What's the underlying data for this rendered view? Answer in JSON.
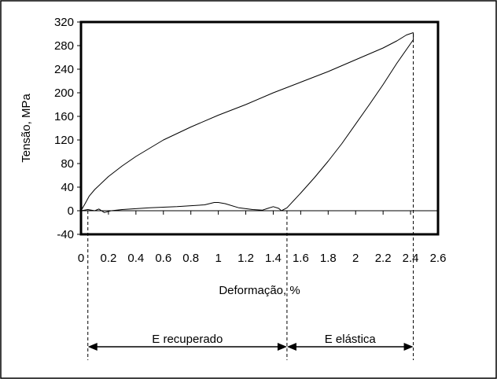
{
  "chart_data": {
    "type": "line",
    "title": "",
    "xlabel": "Deformação, %",
    "ylabel": "Tensão, MPa",
    "xlim": [
      0,
      2.6
    ],
    "ylim": [
      -40,
      320
    ],
    "x_ticks": [
      "0",
      "0.2",
      "0.4",
      "0.6",
      "0.8",
      "1",
      "1.2",
      "1.4",
      "1.6",
      "1.8",
      "2",
      "2.2",
      "2.4",
      "2.6"
    ],
    "y_ticks": [
      "-40",
      "0",
      "40",
      "80",
      "120",
      "160",
      "200",
      "240",
      "280",
      "320"
    ],
    "grid": false,
    "legend": "none",
    "series": [
      {
        "points": [
          [
            0.0,
            0
          ],
          [
            0.03,
            12
          ],
          [
            0.06,
            25
          ],
          [
            0.1,
            36
          ],
          [
            0.2,
            58
          ],
          [
            0.3,
            76
          ],
          [
            0.4,
            92
          ],
          [
            0.5,
            106
          ],
          [
            0.6,
            120
          ],
          [
            0.8,
            142
          ],
          [
            1.0,
            162
          ],
          [
            1.2,
            180
          ],
          [
            1.4,
            200
          ],
          [
            1.6,
            218
          ],
          [
            1.8,
            236
          ],
          [
            2.0,
            256
          ],
          [
            2.2,
            276
          ],
          [
            2.3,
            288
          ],
          [
            2.37,
            298
          ],
          [
            2.42,
            302
          ]
        ]
      },
      {
        "points": [
          [
            2.42,
            302
          ],
          [
            2.42,
            290
          ],
          [
            2.3,
            250
          ],
          [
            2.2,
            214
          ],
          [
            2.1,
            180
          ],
          [
            2.0,
            147
          ],
          [
            1.9,
            114
          ],
          [
            1.8,
            84
          ],
          [
            1.7,
            56
          ],
          [
            1.6,
            30
          ],
          [
            1.5,
            5
          ],
          [
            1.46,
            0
          ]
        ]
      },
      {
        "points": [
          [
            0.0,
            0
          ],
          [
            0.05,
            2
          ],
          [
            0.1,
            0
          ],
          [
            0.13,
            3
          ],
          [
            0.17,
            -3
          ],
          [
            0.22,
            0
          ],
          [
            0.3,
            2
          ],
          [
            0.5,
            5
          ],
          [
            0.7,
            7
          ],
          [
            0.9,
            10
          ],
          [
            0.97,
            14
          ],
          [
            1.0,
            14
          ],
          [
            1.05,
            12
          ],
          [
            1.15,
            5
          ],
          [
            1.25,
            2
          ],
          [
            1.32,
            1
          ],
          [
            1.36,
            4
          ],
          [
            1.4,
            7
          ],
          [
            1.44,
            4
          ],
          [
            1.46,
            0
          ]
        ]
      }
    ],
    "guides": {
      "x_values": [
        0.05,
        1.5,
        2.42
      ],
      "spans": [
        {
          "from": 0.05,
          "to": 1.5,
          "label": "E recuperado"
        },
        {
          "from": 1.5,
          "to": 2.42,
          "label": "E elástica"
        }
      ]
    }
  }
}
